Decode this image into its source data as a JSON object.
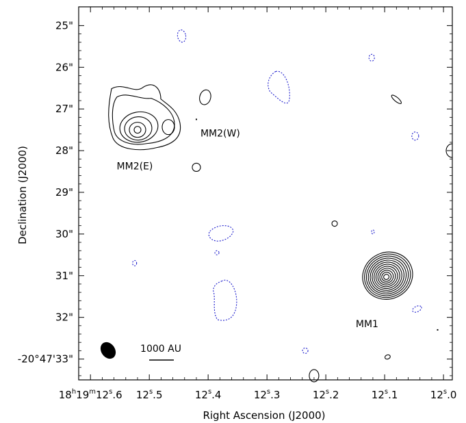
{
  "chart_data": {
    "type": "contour",
    "xlabel": "Right Ascension (J2000)",
    "ylabel": "Declination (J2000)",
    "x_axis": {
      "units": "RA seconds (18h19m)",
      "range": [
        12.62,
        11.985
      ],
      "inverted": true,
      "ticks": [
        {
          "value": 12.6,
          "label_parts": [
            {
              "text": "18",
              "sup": false
            },
            {
              "text": "h",
              "sup": true
            },
            {
              "text": "19",
              "sup": false
            },
            {
              "text": "m",
              "sup": true
            },
            {
              "text": "12",
              "sup": false
            },
            {
              "text": "s",
              "sup": true
            },
            {
              "text": ".6",
              "sup": false
            }
          ]
        },
        {
          "value": 12.5,
          "label_parts": [
            {
              "text": "12",
              "sup": false
            },
            {
              "text": "s",
              "sup": true
            },
            {
              "text": ".5",
              "sup": false
            }
          ]
        },
        {
          "value": 12.4,
          "label_parts": [
            {
              "text": "12",
              "sup": false
            },
            {
              "text": "s",
              "sup": true
            },
            {
              "text": ".4",
              "sup": false
            }
          ]
        },
        {
          "value": 12.3,
          "label_parts": [
            {
              "text": "12",
              "sup": false
            },
            {
              "text": "s",
              "sup": true
            },
            {
              "text": ".3",
              "sup": false
            }
          ]
        },
        {
          "value": 12.2,
          "label_parts": [
            {
              "text": "12",
              "sup": false
            },
            {
              "text": "s",
              "sup": true
            },
            {
              "text": ".2",
              "sup": false
            }
          ]
        },
        {
          "value": 12.1,
          "label_parts": [
            {
              "text": "12",
              "sup": false
            },
            {
              "text": "s",
              "sup": true
            },
            {
              "text": ".1",
              "sup": false
            }
          ]
        },
        {
          "value": 12.0,
          "label_parts": [
            {
              "text": "12",
              "sup": false
            },
            {
              "text": "s",
              "sup": true
            },
            {
              "text": ".0",
              "sup": false
            }
          ]
        }
      ]
    },
    "y_axis": {
      "units": "Dec arcsec offset (-20d47m)",
      "range": [
        33.5,
        24.55
      ],
      "ticks": [
        {
          "value": 25,
          "label": "25\""
        },
        {
          "value": 26,
          "label": "26\""
        },
        {
          "value": 27,
          "label": "27\""
        },
        {
          "value": 28,
          "label": "28\""
        },
        {
          "value": 29,
          "label": "29\""
        },
        {
          "value": 30,
          "label": "30\""
        },
        {
          "value": 31,
          "label": "31\""
        },
        {
          "value": 32,
          "label": "32\""
        },
        {
          "value": 33,
          "label": "-20°47'33\""
        }
      ]
    },
    "grid": false,
    "sources": [
      {
        "name": "MM2(E)",
        "ra": 12.52,
        "dec": 27.5
      },
      {
        "name": "MM2(W)",
        "ra": 12.42,
        "dec": 27.25
      },
      {
        "name": "MM1",
        "ra": 12.095,
        "dec": 31.0
      }
    ],
    "positive_contour_color": "#000000",
    "negative_contour_color": "#1a1acc",
    "mm1_rings": 12,
    "mm2_contours": 6,
    "scale_bar": {
      "label": "1000 AU"
    },
    "beam": {
      "shape": "filled ellipse",
      "color": "#000000"
    }
  }
}
